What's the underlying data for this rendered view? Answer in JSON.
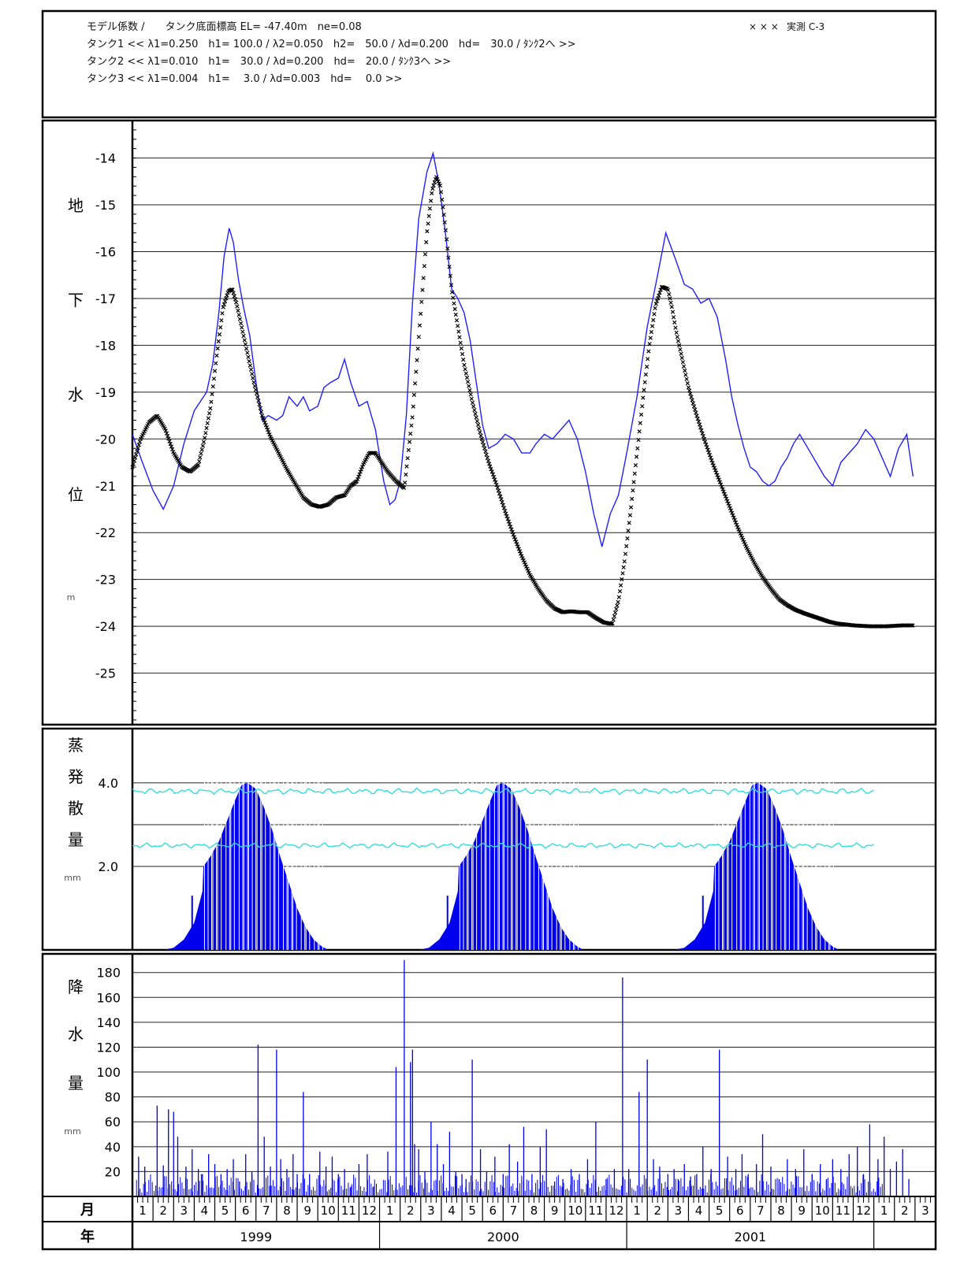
{
  "header": {
    "lines": [
      "モデル係数 /　　タンク底面標高 EL= -47.40m　ne=0.08",
      "タンク1 << λ1=0.250　h1= 100.0 / λ2=0.050　h2=　50.0 / λd=0.200　hd=　30.0 / ﾀﾝｸ2へ >>",
      "タンク2 << λ1=0.010　h1=　30.0 / λd=0.200　hd=　20.0 / ﾀﾝｸ3へ >>",
      "タンク3 << λ1=0.004　h1=　 3.0 / λd=0.003　hd=　 0.0 >>"
    ],
    "legend_marker": "× × ×",
    "legend_label": "実測 C-3"
  },
  "colors": {
    "simulated": "#2020ff",
    "observed": "#000000",
    "evap_bar": "#0000ee",
    "evap_line": "#33dddd",
    "rain_bar": "#0000ee",
    "grid": "#000000"
  },
  "chart_data": [
    {
      "type": "line",
      "panel": "groundwater",
      "ylabel_chars": [
        "地",
        "下",
        "水",
        "位"
      ],
      "ylabel_unit": "m",
      "yticks": [
        -14,
        -15,
        -16,
        -17,
        -18,
        -19,
        -20,
        -21,
        -22,
        -23,
        -24,
        -25
      ],
      "ylim": [
        -26.1,
        -13.2
      ],
      "x_unit": "month index from 1999-01",
      "xlim": [
        0,
        39
      ],
      "series": [
        {
          "name": "",
          "style": "line",
          "x": [
            0,
            0.4,
            1.0,
            1.5,
            2.0,
            2.5,
            3.0,
            3.3,
            3.6,
            3.9,
            4.2,
            4.45,
            4.7,
            4.9,
            5.15,
            5.4,
            5.7,
            6.0,
            6.3,
            6.6,
            7.0,
            7.3,
            7.6,
            8.0,
            8.3,
            8.6,
            9.0,
            9.3,
            9.6,
            10.0,
            10.3,
            10.6,
            11.0,
            11.4,
            11.8,
            12.2,
            12.5,
            12.75,
            13.0,
            13.3,
            13.6,
            13.9,
            14.3,
            14.6,
            14.9,
            15.2,
            15.5,
            15.8,
            16.1,
            16.4,
            16.7,
            17.0,
            17.3,
            17.7,
            18.1,
            18.5,
            18.9,
            19.3,
            19.6,
            20.0,
            20.4,
            20.8,
            21.2,
            21.6,
            22.0,
            22.4,
            22.8,
            23.2,
            23.6,
            24.0,
            24.5,
            25.0,
            25.5,
            25.9,
            26.4,
            26.8,
            27.2,
            27.6,
            28.0,
            28.4,
            28.8,
            29.1,
            29.4,
            29.7,
            30.0,
            30.3,
            30.6,
            30.9,
            31.2,
            31.5,
            31.8,
            32.1,
            32.4,
            32.8,
            33.2,
            33.6,
            34.0,
            34.4,
            34.8,
            35.2,
            35.6,
            36.0,
            36.4,
            36.8,
            37.2,
            37.6,
            37.9
          ],
          "y": [
            -19.9,
            -20.4,
            -21.1,
            -21.5,
            -21.0,
            -20.1,
            -19.4,
            -19.2,
            -19.0,
            -18.4,
            -17.3,
            -16.1,
            -15.5,
            -15.8,
            -16.6,
            -17.2,
            -17.8,
            -18.8,
            -19.6,
            -19.5,
            -19.6,
            -19.5,
            -19.1,
            -19.3,
            -19.1,
            -19.4,
            -19.3,
            -18.9,
            -18.8,
            -18.7,
            -18.3,
            -18.8,
            -19.3,
            -19.2,
            -19.8,
            -20.9,
            -21.4,
            -21.3,
            -20.9,
            -19.5,
            -17.1,
            -15.3,
            -14.3,
            -13.9,
            -14.6,
            -15.6,
            -16.8,
            -17.0,
            -17.3,
            -17.9,
            -18.8,
            -19.7,
            -20.2,
            -20.1,
            -19.9,
            -20.0,
            -20.3,
            -20.3,
            -20.1,
            -19.9,
            -20.0,
            -19.8,
            -19.6,
            -20.0,
            -20.7,
            -21.6,
            -22.3,
            -21.6,
            -21.2,
            -20.3,
            -19.1,
            -17.6,
            -16.5,
            -15.6,
            -16.2,
            -16.7,
            -16.8,
            -17.1,
            -17.0,
            -17.4,
            -18.3,
            -19.1,
            -19.7,
            -20.2,
            -20.6,
            -20.7,
            -20.9,
            -21.0,
            -20.9,
            -20.6,
            -20.4,
            -20.1,
            -19.9,
            -20.2,
            -20.5,
            -20.8,
            -21.0,
            -20.5,
            -20.3,
            -20.1,
            -19.8,
            -20.0,
            -20.4,
            -20.8,
            -20.2,
            -19.9,
            -20.8
          ]
        },
        {
          "name": "実測 C-3",
          "style": "cross",
          "x": [
            0,
            0.4,
            0.8,
            1.2,
            1.6,
            2.0,
            2.4,
            2.8,
            3.2,
            3.5,
            3.8,
            4.1,
            4.4,
            4.65,
            4.85,
            5.05,
            5.3,
            5.6,
            5.9,
            6.3,
            6.7,
            7.1,
            7.5,
            7.9,
            8.3,
            8.7,
            9.1,
            9.5,
            9.9,
            10.3,
            10.6,
            10.9,
            11.2,
            11.5,
            11.8,
            12.1,
            12.4,
            12.8,
            13.2,
            13.6,
            14.0,
            14.3,
            14.55,
            14.75,
            14.95,
            15.2,
            15.5,
            15.8,
            16.1,
            16.5,
            16.9,
            17.3,
            17.7,
            18.1,
            18.5,
            18.9,
            19.3,
            19.7,
            20.1,
            20.5,
            20.9,
            21.3,
            21.7,
            22.1,
            22.5,
            22.9,
            23.3,
            23.6,
            23.9,
            24.2,
            24.5,
            24.8,
            25.1,
            25.4,
            25.7,
            26.0,
            26.2,
            26.4,
            26.7,
            27.0,
            27.4,
            27.8,
            28.2,
            28.6,
            29.0,
            29.4,
            29.8,
            30.2,
            30.6,
            31.0,
            31.4,
            31.8,
            32.2,
            32.6,
            33.0,
            33.4,
            33.8,
            34.2,
            34.6,
            35.0,
            35.4,
            35.8,
            36.2,
            36.6,
            37.0,
            37.4,
            37.9
          ],
          "y": [
            -20.6,
            -20.0,
            -19.65,
            -19.5,
            -19.8,
            -20.3,
            -20.6,
            -20.7,
            -20.55,
            -20.0,
            -19.3,
            -18.2,
            -17.2,
            -16.85,
            -16.8,
            -17.1,
            -17.6,
            -18.2,
            -18.8,
            -19.5,
            -19.95,
            -20.3,
            -20.65,
            -20.95,
            -21.25,
            -21.4,
            -21.45,
            -21.4,
            -21.25,
            -21.2,
            -21.0,
            -20.9,
            -20.55,
            -20.3,
            -20.3,
            -20.5,
            -20.7,
            -20.9,
            -21.05,
            -19.5,
            -17.3,
            -15.6,
            -14.7,
            -14.4,
            -14.6,
            -15.5,
            -16.8,
            -17.6,
            -18.4,
            -19.2,
            -19.9,
            -20.5,
            -21.0,
            -21.55,
            -22.05,
            -22.5,
            -22.9,
            -23.2,
            -23.45,
            -23.62,
            -23.7,
            -23.68,
            -23.7,
            -23.7,
            -23.82,
            -23.92,
            -23.95,
            -23.45,
            -22.6,
            -21.5,
            -20.3,
            -19.1,
            -18.0,
            -17.15,
            -16.75,
            -16.8,
            -17.2,
            -17.7,
            -18.3,
            -18.9,
            -19.5,
            -20.05,
            -20.55,
            -21.0,
            -21.45,
            -21.9,
            -22.3,
            -22.65,
            -22.95,
            -23.2,
            -23.42,
            -23.55,
            -23.65,
            -23.72,
            -23.78,
            -23.84,
            -23.9,
            -23.94,
            -23.96,
            -23.98,
            -23.99,
            -24.0,
            -24.0,
            -24.0,
            -23.99,
            -23.98,
            -23.98
          ]
        }
      ]
    },
    {
      "type": "bar",
      "panel": "evapotranspiration",
      "ylabel_chars": [
        "蒸",
        "発",
        "散",
        "量"
      ],
      "ylabel_unit": "mm",
      "yticks": [
        4.0,
        2.0
      ],
      "ytick_labels": [
        "4.0",
        "2.0"
      ],
      "ylim": [
        0,
        5.3
      ],
      "seasonal_curve": {
        "x": [
          1.5,
          2.0,
          2.5,
          3.0,
          3.4,
          3.45,
          3.8,
          4.2,
          4.6,
          5.0,
          5.3,
          5.6,
          6.0,
          6.4,
          6.8,
          7.2,
          7.6,
          8.0,
          8.4,
          8.8,
          9.2,
          9.5
        ],
        "y": [
          0,
          0.05,
          0.25,
          0.65,
          1.4,
          2.0,
          2.25,
          2.6,
          3.1,
          3.6,
          3.95,
          4.0,
          3.85,
          3.4,
          2.85,
          2.2,
          1.6,
          1.0,
          0.55,
          0.25,
          0.08,
          0
        ],
        "year_starts": [
          0,
          12.4,
          24.8
        ]
      },
      "upper_line_level": 3.8,
      "lower_line_level": 2.5
    },
    {
      "type": "bar",
      "panel": "precipitation",
      "ylabel_chars": [
        "降",
        "水",
        "量"
      ],
      "ylabel_unit": "mm",
      "yticks": [
        180,
        160,
        140,
        120,
        100,
        80,
        60,
        40,
        20
      ],
      "ylim": [
        0,
        195
      ],
      "x": [
        0.3,
        0.6,
        1.2,
        1.5,
        1.75,
        2.0,
        2.2,
        2.6,
        2.9,
        3.2,
        3.4,
        3.7,
        4.0,
        4.3,
        4.6,
        4.9,
        5.2,
        5.5,
        5.8,
        6.1,
        6.4,
        6.7,
        7.0,
        7.2,
        7.5,
        7.8,
        8.0,
        8.3,
        8.6,
        9.1,
        9.4,
        9.7,
        10.0,
        10.3,
        10.6,
        11.0,
        11.4,
        11.7,
        12.4,
        12.8,
        13.2,
        13.5,
        13.6,
        13.7,
        13.9,
        14.2,
        14.5,
        14.8,
        15.1,
        15.4,
        15.7,
        16.0,
        16.2,
        16.5,
        16.9,
        17.2,
        17.6,
        18.0,
        18.3,
        18.7,
        19.0,
        19.4,
        19.8,
        20.1,
        20.5,
        20.9,
        21.3,
        21.7,
        22.1,
        22.5,
        23.0,
        23.4,
        23.8,
        24.1,
        24.6,
        25.0,
        25.3,
        25.6,
        26.0,
        26.3,
        26.5,
        26.8,
        27.1,
        27.4,
        27.7,
        28.1,
        28.5,
        28.9,
        29.3,
        29.6,
        29.9,
        30.3,
        30.6,
        31.0,
        31.4,
        31.8,
        32.2,
        32.6,
        33.0,
        33.4,
        33.7,
        34.0,
        34.4,
        34.8,
        35.2,
        35.5,
        35.8,
        36.2,
        36.5,
        36.8,
        37.1,
        37.4,
        37.7
      ],
      "values": [
        32,
        24,
        73,
        25,
        70,
        68,
        48,
        24,
        38,
        22,
        18,
        34,
        26,
        18,
        22,
        30,
        12,
        34,
        20,
        122,
        48,
        24,
        118,
        30,
        22,
        34,
        18,
        84,
        18,
        36,
        24,
        32,
        18,
        22,
        8,
        26,
        34,
        8,
        36,
        104,
        190,
        108,
        118,
        42,
        38,
        20,
        60,
        42,
        26,
        52,
        20,
        18,
        14,
        110,
        38,
        20,
        32,
        18,
        42,
        28,
        56,
        18,
        40,
        54,
        12,
        14,
        22,
        18,
        30,
        60,
        14,
        22,
        176,
        22,
        84,
        110,
        30,
        24,
        18,
        22,
        14,
        26,
        16,
        18,
        40,
        22,
        118,
        32,
        22,
        34,
        18,
        26,
        50,
        24,
        14,
        30,
        22,
        38,
        18,
        26,
        14,
        30,
        22,
        34,
        40,
        18,
        58,
        30,
        48,
        22,
        28,
        38,
        14
      ],
      "x_axis": {
        "month_row_label": "月",
        "year_row_label": "年",
        "month_labels": [
          "1",
          "2",
          "3",
          "4",
          "5",
          "6",
          "7",
          "8",
          "9",
          "10",
          "11",
          "12",
          "1",
          "2",
          "3",
          "4",
          "5",
          "6",
          "7",
          "8",
          "9",
          "10",
          "11",
          "12",
          "1",
          "2",
          "3",
          "4",
          "5",
          "6",
          "7",
          "8",
          "9",
          "10",
          "11",
          "12",
          "1",
          "2",
          "3"
        ],
        "years": [
          {
            "label": "1999",
            "start": 0,
            "end": 12
          },
          {
            "label": "2000",
            "start": 12,
            "end": 24
          },
          {
            "label": "2001",
            "start": 24,
            "end": 36
          }
        ]
      }
    }
  ]
}
